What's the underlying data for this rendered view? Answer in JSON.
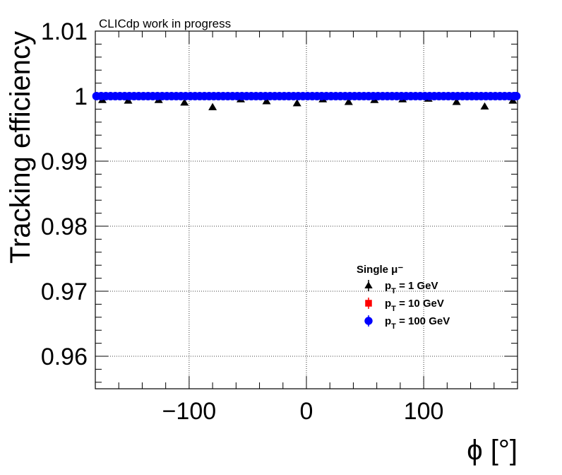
{
  "header": {
    "note": "CLICdp work in progress"
  },
  "chart_data": {
    "type": "scatter",
    "xlabel": "ϕ [°]",
    "ylabel": "Tracking efficiency",
    "xlim": [
      -180,
      180
    ],
    "ylim": [
      0.955,
      1.01
    ],
    "x_ticks": [
      -100,
      0,
      100
    ],
    "x_tick_labels": [
      "−100",
      "0",
      "100"
    ],
    "y_ticks": [
      0.96,
      0.97,
      0.98,
      0.99,
      1.0,
      1.01
    ],
    "y_tick_labels": [
      "0.96",
      "0.97",
      "0.98",
      "0.99",
      "1",
      "1.01"
    ],
    "grid": true,
    "legend": {
      "title": "Single μ⁻",
      "position": "center-right",
      "entries": [
        {
          "label": "p_T = 1 GeV",
          "sub": "T",
          "pre": "p",
          "post": " = 1 GeV"
        },
        {
          "label": "p_T = 10 GeV",
          "sub": "T",
          "pre": "p",
          "post": " = 10 GeV"
        },
        {
          "label": "p_T = 100 GeV",
          "sub": "T",
          "pre": "p",
          "post": " = 100 GeV"
        }
      ]
    },
    "series": [
      {
        "name": "p_T = 1 GeV",
        "marker": "triangle",
        "color": "#000000",
        "x": [
          -174,
          -152,
          -126,
          -104,
          -80,
          -56,
          -34,
          -8,
          14,
          36,
          58,
          82,
          104,
          128,
          152,
          176
        ],
        "y": [
          0.9994,
          0.9993,
          0.9994,
          0.999,
          0.9983,
          0.9995,
          0.9992,
          0.9989,
          0.9995,
          0.9991,
          0.9994,
          0.9995,
          0.9996,
          0.9991,
          0.9984,
          0.9993
        ]
      },
      {
        "name": "p_T = 10 GeV",
        "marker": "square",
        "color": "#ff0000",
        "x": [
          -177,
          -165,
          -153,
          -141,
          -129,
          -117,
          -105,
          -93,
          -81,
          -69,
          -57,
          -45,
          -33,
          -21,
          -9,
          3,
          15,
          27,
          39,
          51,
          63,
          75,
          87,
          99,
          111,
          123,
          135,
          147,
          159,
          171,
          177
        ],
        "y": [
          1,
          1,
          1,
          1,
          1,
          1,
          1,
          1,
          1,
          1,
          1,
          1,
          1,
          1,
          1,
          1,
          1,
          1,
          1,
          1,
          1,
          1,
          1,
          1,
          1,
          1,
          1,
          1,
          1,
          1,
          1
        ]
      },
      {
        "name": "p_T = 100 GeV",
        "marker": "circle",
        "color": "#0000ff",
        "x": [
          -179,
          -175,
          -171,
          -167,
          -163,
          -159,
          -155,
          -151,
          -147,
          -143,
          -139,
          -135,
          -131,
          -127,
          -123,
          -119,
          -115,
          -111,
          -107,
          -103,
          -99,
          -95,
          -91,
          -87,
          -83,
          -79,
          -75,
          -71,
          -67,
          -63,
          -59,
          -55,
          -51,
          -47,
          -43,
          -39,
          -35,
          -31,
          -27,
          -23,
          -19,
          -15,
          -11,
          -7,
          -3,
          1,
          5,
          9,
          13,
          17,
          21,
          25,
          29,
          33,
          37,
          41,
          45,
          49,
          53,
          57,
          61,
          65,
          69,
          73,
          77,
          81,
          85,
          89,
          93,
          97,
          101,
          105,
          109,
          113,
          117,
          121,
          125,
          129,
          133,
          137,
          141,
          145,
          149,
          153,
          157,
          161,
          165,
          169,
          173,
          177,
          179
        ],
        "y": [
          1,
          1,
          1,
          1,
          1,
          1,
          1,
          1,
          1,
          1,
          1,
          1,
          1,
          1,
          1,
          1,
          1,
          1,
          1,
          1,
          1,
          1,
          1,
          1,
          1,
          1,
          1,
          1,
          1,
          1,
          1,
          1,
          1,
          1,
          1,
          1,
          1,
          1,
          1,
          1,
          1,
          1,
          1,
          1,
          1,
          1,
          1,
          1,
          1,
          1,
          1,
          1,
          1,
          1,
          1,
          1,
          1,
          1,
          1,
          1,
          1,
          1,
          1,
          1,
          1,
          1,
          1,
          1,
          1,
          1,
          1,
          1,
          1,
          1,
          1,
          1,
          1,
          1,
          1,
          1,
          1,
          1,
          1,
          1,
          1,
          1,
          1,
          1,
          1,
          1,
          1
        ]
      }
    ]
  }
}
